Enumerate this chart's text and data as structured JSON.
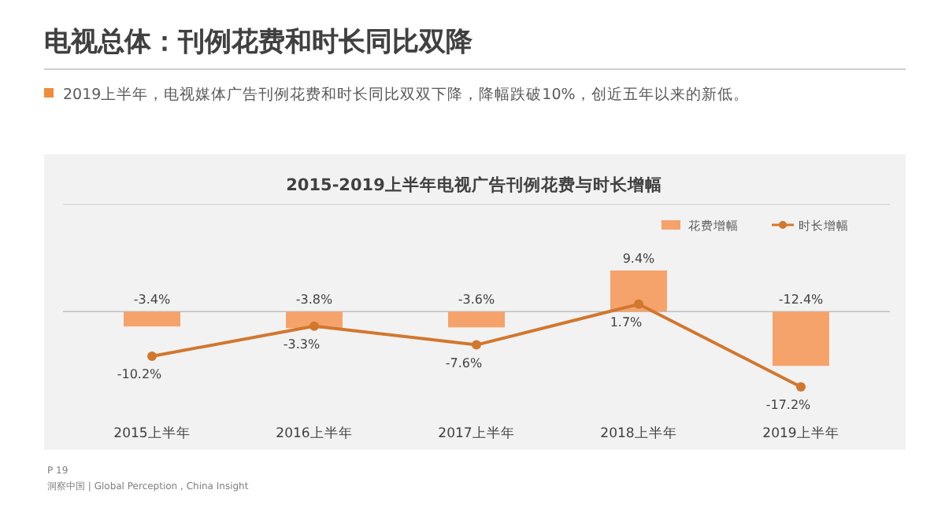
{
  "chart_data": {
    "type": "bar",
    "title": "2015-2019上半年电视广告刊例花费与时长增幅",
    "annotations": [
      "电视总体：刊例花费和时长同比双降",
      "2019上半年，电视媒体广告刊例花费和时长同比双双下降，降幅跌破10%，创近五年以来的新低。",
      "P 19",
      "洞察中国 | Global Perception , China Insight"
    ],
    "categories": [
      "2015上半年",
      "2016上半年",
      "2017上半年",
      "2018上半年",
      "2019上半年"
    ],
    "series": [
      {
        "name": "花费增幅",
        "color": "#f5a36b",
        "values": [
          -3.4,
          -3.8,
          -3.6,
          9.4,
          -12.4
        ],
        "value_labels": [
          "-3.4%",
          "-3.8%",
          "-3.6%",
          "9.4%",
          "-12.4%"
        ]
      },
      {
        "name": "时长增幅",
        "type": "line",
        "color": "#d2772e",
        "values": [
          -10.2,
          -3.3,
          -7.6,
          1.7,
          -17.2
        ],
        "value_labels": [
          "-10.2%",
          "-3.3%",
          "-7.6%",
          "1.7%",
          "-17.2%"
        ]
      }
    ],
    "legend": "top right",
    "marker": "circle",
    "line_style": "solid"
  }
}
